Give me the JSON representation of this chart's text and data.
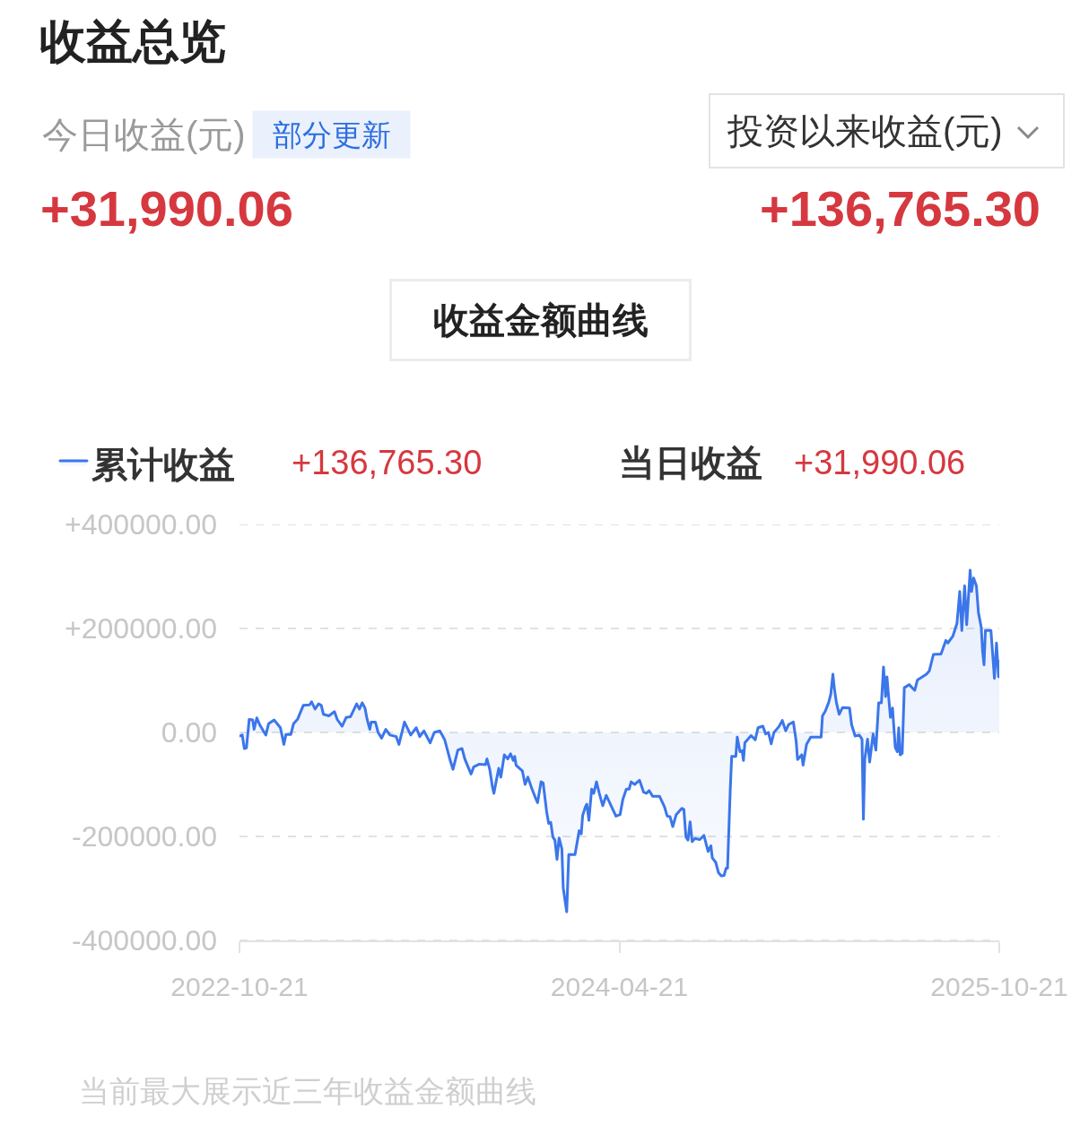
{
  "chart_data": {
    "type": "area",
    "title": "收益总览",
    "x": [
      "2022-10-21",
      "2022-10-25",
      "2022-10-28",
      "2022-10-31",
      "2022-11-04",
      "2022-11-09",
      "2022-11-11",
      "2022-11-15",
      "2022-11-19",
      "2022-11-28",
      "2022-12-02",
      "2022-12-10",
      "2022-12-19",
      "2022-12-24",
      "2022-12-27",
      "2023-01-03",
      "2023-01-07",
      "2023-01-13",
      "2023-01-21",
      "2023-01-30",
      "2023-02-02",
      "2023-02-07",
      "2023-02-12",
      "2023-02-16",
      "2023-02-19",
      "2023-02-27",
      "2023-03-07",
      "2023-03-11",
      "2023-03-18",
      "2023-03-24",
      "2023-03-30",
      "2023-04-08",
      "2023-04-12",
      "2023-04-16",
      "2023-04-20",
      "2023-04-23",
      "2023-04-27",
      "2023-04-29",
      "2023-05-05",
      "2023-05-09",
      "2023-05-14",
      "2023-05-20",
      "2023-05-26",
      "2023-06-04",
      "2023-06-08",
      "2023-06-16",
      "2023-06-25",
      "2023-07-03",
      "2023-07-08",
      "2023-07-14",
      "2023-07-23",
      "2023-07-29",
      "2023-08-06",
      "2023-08-13",
      "2023-08-21",
      "2023-08-25",
      "2023-09-01",
      "2023-09-07",
      "2023-09-11",
      "2023-09-20",
      "2023-09-24",
      "2023-10-02",
      "2023-10-11",
      "2023-10-13",
      "2023-10-17",
      "2023-10-21",
      "2023-10-23",
      "2023-10-27",
      "2023-10-30",
      "2023-11-02",
      "2023-11-07",
      "2023-11-12",
      "2023-11-16",
      "2023-11-20",
      "2023-11-22",
      "2023-11-24",
      "2023-12-03",
      "2023-12-07",
      "2023-12-11",
      "2023-12-17",
      "2023-12-22",
      "2023-12-25",
      "2023-12-30",
      "2024-01-02",
      "2024-01-07",
      "2024-01-10",
      "2024-01-13",
      "2024-01-16",
      "2024-01-19",
      "2024-01-22",
      "2024-01-25",
      "2024-01-29",
      "2024-01-31",
      "2024-02-03",
      "2024-02-05",
      "2024-02-08",
      "2024-02-17",
      "2024-02-23",
      "2024-02-26",
      "2024-02-28",
      "2024-03-03",
      "2024-03-05",
      "2024-03-08",
      "2024-03-12",
      "2024-03-15",
      "2024-03-19",
      "2024-03-23",
      "2024-03-28",
      "2024-04-02",
      "2024-04-07",
      "2024-04-16",
      "2024-04-22",
      "2024-04-26",
      "2024-05-01",
      "2024-05-05",
      "2024-05-08",
      "2024-05-13",
      "2024-05-20",
      "2024-05-26",
      "2024-05-30",
      "2024-06-03",
      "2024-06-08",
      "2024-06-18",
      "2024-06-25",
      "2024-06-29",
      "2024-07-03",
      "2024-07-07",
      "2024-07-12",
      "2024-07-20",
      "2024-07-23",
      "2024-07-26",
      "2024-07-29",
      "2024-08-01",
      "2024-08-04",
      "2024-08-08",
      "2024-08-15",
      "2024-08-21",
      "2024-08-27",
      "2024-08-31",
      "2024-09-02",
      "2024-09-07",
      "2024-09-11",
      "2024-09-15",
      "2024-09-19",
      "2024-09-22",
      "2024-09-24",
      "2024-09-28",
      "2024-09-30",
      "2024-10-06",
      "2024-10-08",
      "2024-10-12",
      "2024-10-15",
      "2024-10-17",
      "2024-10-19",
      "2024-10-28",
      "2024-11-03",
      "2024-11-07",
      "2024-11-14",
      "2024-11-18",
      "2024-11-22",
      "2024-11-26",
      "2024-11-30",
      "2024-12-07",
      "2024-12-12",
      "2024-12-17",
      "2024-12-21",
      "2024-12-28",
      "2025-01-01",
      "2025-01-03",
      "2025-01-09",
      "2025-01-11",
      "2025-01-16",
      "2025-01-22",
      "2025-02-06",
      "2025-02-08",
      "2025-02-12",
      "2025-02-17",
      "2025-02-20",
      "2025-02-23",
      "2025-02-25",
      "2025-02-28",
      "2025-03-04",
      "2025-03-09",
      "2025-03-19",
      "2025-03-22",
      "2025-03-27",
      "2025-04-02",
      "2025-04-06",
      "2025-04-08",
      "2025-04-10",
      "2025-04-14",
      "2025-04-17",
      "2025-04-22",
      "2025-04-26",
      "2025-04-30",
      "2025-05-04",
      "2025-05-07",
      "2025-05-10",
      "2025-05-12",
      "2025-05-14",
      "2025-05-17",
      "2025-05-20",
      "2025-05-24",
      "2025-05-27",
      "2025-05-29",
      "2025-05-31",
      "2025-06-03",
      "2025-06-06",
      "2025-06-13",
      "2025-06-21",
      "2025-06-25",
      "2025-07-02",
      "2025-07-08",
      "2025-07-12",
      "2025-07-18",
      "2025-07-29",
      "2025-08-05",
      "2025-08-08",
      "2025-08-15",
      "2025-08-21",
      "2025-08-25",
      "2025-08-28",
      "2025-09-01",
      "2025-09-04",
      "2025-09-09",
      "2025-09-11",
      "2025-09-14",
      "2025-09-18",
      "2025-09-21",
      "2025-09-25",
      "2025-09-27",
      "2025-09-29",
      "2025-10-01",
      "2025-10-09",
      "2025-10-14",
      "2025-10-17",
      "2025-10-20",
      "2025-10-21"
    ],
    "series": [
      {
        "name": "累计收益",
        "color": "#3b76ea",
        "values": [
          -7000,
          -5000,
          -31000,
          -30000,
          25000,
          24000,
          6000,
          28000,
          15000,
          -5000,
          17000,
          24000,
          9000,
          -23000,
          -4000,
          -4000,
          17000,
          26000,
          52000,
          53000,
          59000,
          45000,
          55000,
          52000,
          35000,
          32000,
          40000,
          25000,
          12000,
          29000,
          30000,
          55000,
          45000,
          57000,
          47000,
          26000,
          6000,
          20000,
          20000,
          0,
          -11000,
          6000,
          -5000,
          -8000,
          -23000,
          20000,
          -5000,
          9000,
          -8000,
          3000,
          -20000,
          0,
          3000,
          -14000,
          -54000,
          -71000,
          -34000,
          -31000,
          -51000,
          -80000,
          -66000,
          -61000,
          -62000,
          -51000,
          -71000,
          -106000,
          -117000,
          -89000,
          -69000,
          -86000,
          -43000,
          -51000,
          -41000,
          -54000,
          -46000,
          -63000,
          -74000,
          -100000,
          -86000,
          -109000,
          -126000,
          -135000,
          -95000,
          -97000,
          -152000,
          -175000,
          -173000,
          -201000,
          -207000,
          -244000,
          -203000,
          -224000,
          -299000,
          -327000,
          -345000,
          -235000,
          -235000,
          -189000,
          -195000,
          -160000,
          -143000,
          -138000,
          -169000,
          -109000,
          -117000,
          -95000,
          -117000,
          -141000,
          -121000,
          -135000,
          -161000,
          -158000,
          -129000,
          -109000,
          -109000,
          -95000,
          -100000,
          -92000,
          -115000,
          -117000,
          -112000,
          -123000,
          -123000,
          -143000,
          -161000,
          -162000,
          -181000,
          -158000,
          -146000,
          -148000,
          -201000,
          -207000,
          -172000,
          -210000,
          -204000,
          -206000,
          -198000,
          -229000,
          -218000,
          -241000,
          -250000,
          -270000,
          -276000,
          -275000,
          -261000,
          -261000,
          -108000,
          -46000,
          -46000,
          -9000,
          -37000,
          -35000,
          -54000,
          -20000,
          -6000,
          -14000,
          9000,
          12000,
          -3000,
          0,
          -22000,
          0,
          11000,
          23000,
          3000,
          15000,
          20000,
          -17000,
          -52000,
          -43000,
          -63000,
          -23000,
          -9000,
          -9000,
          32000,
          41000,
          58000,
          74000,
          112000,
          86000,
          58000,
          35000,
          48000,
          47000,
          15000,
          -7000,
          -5000,
          -13000,
          -167000,
          -52000,
          -13000,
          -57000,
          -3000,
          -34000,
          57000,
          57000,
          126000,
          69000,
          107000,
          75000,
          29000,
          47000,
          -29000,
          -37000,
          9000,
          -43000,
          -40000,
          86000,
          92000,
          81000,
          101000,
          107000,
          112000,
          118000,
          150000,
          151000,
          177000,
          172000,
          185000,
          210000,
          271000,
          196000,
          282000,
          207000,
          312000,
          271000,
          297000,
          282000,
          230000,
          202000,
          155000,
          130000,
          196000,
          196000,
          104000,
          172000,
          107000,
          136765.3
        ]
      }
    ],
    "xlim": [
      "2022-10-21",
      "2025-10-21"
    ],
    "xticks": [
      "2022-10-21",
      "2024-04-21",
      "2025-10-21"
    ],
    "ylim": [
      -400000,
      400000
    ],
    "yticks": [
      {
        "value": -400000,
        "label": "-400000.00"
      },
      {
        "value": -200000,
        "label": "-200000.00"
      },
      {
        "value": 0,
        "label": "0.00"
      },
      {
        "value": 200000,
        "label": "+200000.00"
      },
      {
        "value": 400000,
        "label": "+400000.00"
      }
    ],
    "grid": "y",
    "legend": "top left",
    "annotations": [
      "今日收益(元)",
      "部分更新",
      "+31,990.06",
      "投资以来收益(元)",
      "+136,765.30",
      "收益金额曲线",
      "+136,765.30",
      "当日收益",
      "+31,990.06",
      "当前最大展示近三年收益金额曲线"
    ]
  }
}
